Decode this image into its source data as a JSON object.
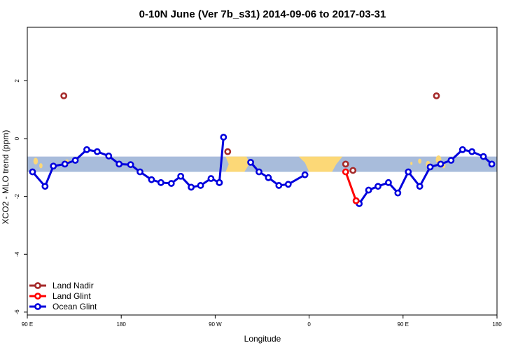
{
  "chart_data": {
    "type": "line",
    "title": "0-10N June (Ver 7b_s31)   2014-09-06 to 2017-03-31",
    "xlabel": "Longitude",
    "ylabel": "XCO2 - MLO trend (ppm)",
    "x_ticks": [
      {
        "value": 90,
        "label": "90 E"
      },
      {
        "value": 180,
        "label": "180"
      },
      {
        "value": 270,
        "label": "90 W"
      },
      {
        "value": 360,
        "label": "0"
      },
      {
        "value": 450,
        "label": "90 E"
      },
      {
        "value": 540,
        "label": "180"
      }
    ],
    "y_ticks": [
      {
        "value": -6,
        "label": "-6"
      },
      {
        "value": -4,
        "label": "-4"
      },
      {
        "value": -2,
        "label": "-2"
      },
      {
        "value": 0,
        "label": "0"
      },
      {
        "value": 2,
        "label": "2"
      }
    ],
    "xlim": [
      90,
      540
    ],
    "ylim": [
      -6.1,
      3.85
    ],
    "grid": false,
    "legend_position": "bottom-left",
    "background_band": {
      "y_min": -1.15,
      "y_max": -0.62,
      "ocean_color": "#a8bcdb",
      "land_color": "#fcd877"
    },
    "series": [
      {
        "name": "Land Nadir",
        "color": "#a52a2a",
        "connect": false,
        "x": [
          125,
          282,
          395,
          402,
          482
        ],
        "y": [
          1.48,
          -0.45,
          -0.88,
          -1.1,
          1.48
        ]
      },
      {
        "name": "Land Glint",
        "color": "#ff0000",
        "connect": true,
        "x": [
          395,
          405
        ],
        "y": [
          -1.15,
          -2.15
        ]
      },
      {
        "name": "Ocean Glint",
        "color": "#0000dd",
        "connect": true,
        "segments": [
          {
            "x": [
              95,
              107,
              115,
              126,
              136,
              147,
              157,
              168,
              178,
              189,
              198,
              209,
              218,
              228,
              237,
              247,
              256,
              266,
              274
            ],
            "y": [
              -1.15,
              -1.65,
              -0.95,
              -0.88,
              -0.75,
              -0.38,
              -0.45,
              -0.6,
              -0.88,
              -0.9,
              -1.15,
              -1.42,
              -1.52,
              -1.55,
              -1.3,
              -1.68,
              -1.62,
              -1.38,
              -1.52
            ]
          },
          {
            "x": [
              274,
              278
            ],
            "y": [
              -1.52,
              0.05
            ]
          },
          {
            "x": [
              304,
              312,
              321,
              331,
              340,
              356
            ],
            "y": [
              -0.82,
              -1.15,
              -1.35,
              -1.62,
              -1.58,
              -1.25
            ]
          },
          {
            "x": [
              405,
              408,
              417,
              426,
              436,
              445,
              455,
              466,
              476,
              486,
              496,
              507,
              516,
              527,
              535
            ],
            "y": [
              -2.15,
              -2.25,
              -1.78,
              -1.65,
              -1.52,
              -1.88,
              -1.15,
              -1.65,
              -0.98,
              -0.88,
              -0.75,
              -0.38,
              -0.45,
              -0.62,
              -0.88
            ]
          }
        ]
      }
    ]
  }
}
